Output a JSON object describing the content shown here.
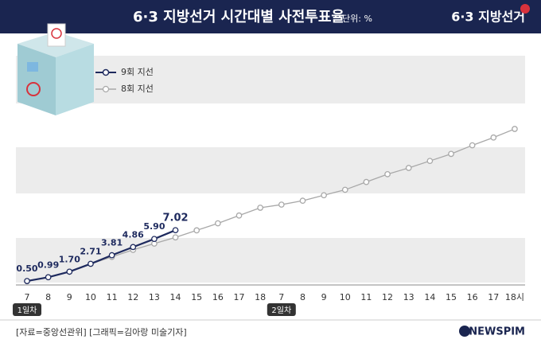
{
  "chart_data": {
    "type": "line",
    "title": "6·3 지방선거 시간대별 사전투표율",
    "unit": "단위: %",
    "logo": "6·3 지방선거",
    "categories": [
      "7",
      "8",
      "9",
      "10",
      "11",
      "12",
      "13",
      "14",
      "15",
      "16",
      "17",
      "18",
      "7",
      "8",
      "9",
      "10",
      "11",
      "12",
      "13",
      "14",
      "15",
      "16",
      "17",
      "18시"
    ],
    "day_markers": [
      {
        "index": 0,
        "label": "1일차"
      },
      {
        "index": 12,
        "label": "2일차"
      }
    ],
    "series": [
      {
        "name": "9회 지선",
        "color": "#1e2a5e",
        "values": [
          0.5,
          0.99,
          1.7,
          2.71,
          3.81,
          4.86,
          5.9,
          7.02,
          null,
          null,
          null,
          null,
          null,
          null,
          null,
          null,
          null,
          null,
          null,
          null,
          null,
          null,
          null,
          null
        ],
        "value_labels": [
          "0.50",
          "0.99",
          "1.70",
          "2.71",
          "3.81",
          "4.86",
          "5.90",
          "7.02",
          null,
          null,
          null,
          null,
          null,
          null,
          null,
          null,
          null,
          null,
          null,
          null,
          null,
          null,
          null,
          null
        ]
      },
      {
        "name": "8회 지선",
        "color": "#a8a8a8",
        "values": [
          0.49,
          1.0,
          1.7,
          2.7,
          3.6,
          4.5,
          5.3,
          6.1,
          7.0,
          7.9,
          8.9,
          9.9,
          10.3,
          10.8,
          11.5,
          12.2,
          13.2,
          14.2,
          15.0,
          15.9,
          16.8,
          17.9,
          18.9,
          20.0
        ]
      }
    ],
    "ylim": [
      0,
      30
    ],
    "source": "[자료=중앙선관위] [그래픽=김아랑 미술기자]",
    "brand": "NEWSPIM"
  }
}
